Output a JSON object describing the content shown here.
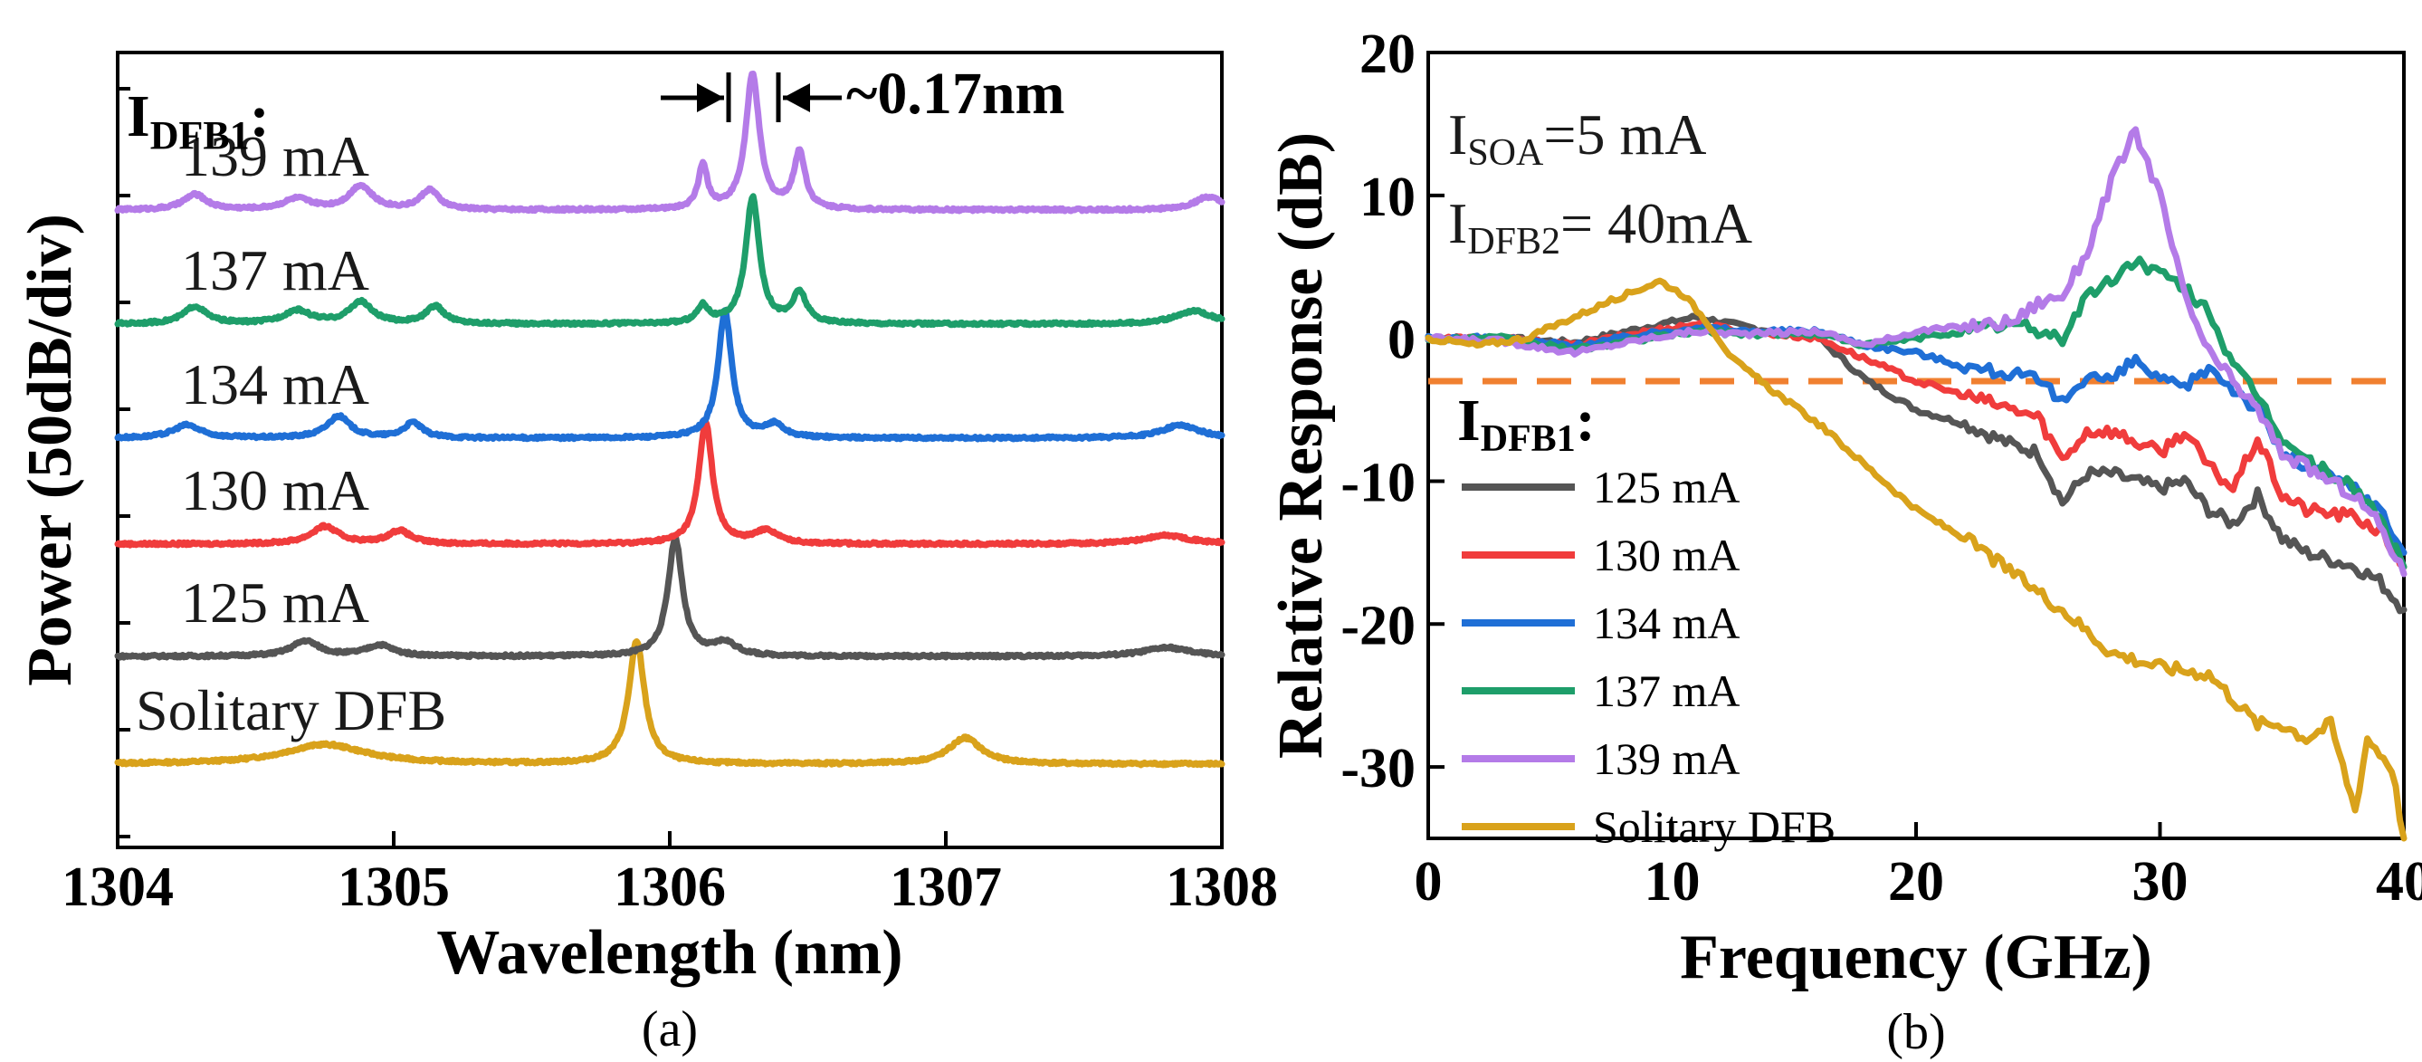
{
  "chart_data": [
    {
      "type": "line",
      "panel_label": "(a)",
      "xlabel": "Wavelength (nm)",
      "ylabel": "Power (50dB/div)",
      "xlim": [
        1304,
        1308
      ],
      "xticks": [
        "1304",
        "1305",
        "1306",
        "1307",
        "1308"
      ],
      "legend_title": {
        "main": "I",
        "sub": "DFB1",
        "suffix": ":"
      },
      "spacing_annotation": "~0.17nm",
      "series": [
        {
          "name": "Solitary DFB",
          "color": "#d9a21b",
          "offset": 0,
          "peaks": [
            [
              1304.75,
              0.45,
              0.18
            ],
            [
              1305.88,
              2.8,
              0.035
            ],
            [
              1307.07,
              0.6,
              0.07
            ]
          ]
        },
        {
          "name": "125 mA",
          "color": "#555555",
          "offset": 1,
          "peaks": [
            [
              1304.68,
              0.35,
              0.06
            ],
            [
              1304.95,
              0.25,
              0.06
            ],
            [
              1306.02,
              2.7,
              0.032
            ],
            [
              1306.2,
              0.3,
              0.05
            ],
            [
              1307.8,
              0.2,
              0.1
            ]
          ]
        },
        {
          "name": "130 mA",
          "color": "#f03c3c",
          "offset": 2,
          "peaks": [
            [
              1304.75,
              0.4,
              0.06
            ],
            [
              1305.02,
              0.3,
              0.05
            ],
            [
              1306.13,
              2.8,
              0.03
            ],
            [
              1306.35,
              0.3,
              0.05
            ],
            [
              1307.8,
              0.2,
              0.1
            ]
          ]
        },
        {
          "name": "134 mA",
          "color": "#1f6fd6",
          "offset": 3,
          "peaks": [
            [
              1304.25,
              0.3,
              0.06
            ],
            [
              1304.8,
              0.5,
              0.05
            ],
            [
              1305.07,
              0.35,
              0.04
            ],
            [
              1306.2,
              2.9,
              0.03
            ],
            [
              1306.38,
              0.3,
              0.04
            ],
            [
              1307.85,
              0.3,
              0.08
            ]
          ]
        },
        {
          "name": "137 mA",
          "color": "#1e9e6a",
          "offset": 4,
          "peaks": [
            [
              1304.28,
              0.4,
              0.05
            ],
            [
              1304.65,
              0.3,
              0.06
            ],
            [
              1304.88,
              0.5,
              0.05
            ],
            [
              1305.15,
              0.4,
              0.04
            ],
            [
              1306.12,
              0.4,
              0.025
            ],
            [
              1306.3,
              2.9,
              0.03
            ],
            [
              1306.47,
              0.7,
              0.03
            ],
            [
              1307.9,
              0.3,
              0.08
            ]
          ]
        },
        {
          "name": "139 mA",
          "color": "#b47be8",
          "offset": 5,
          "peaks": [
            [
              1304.28,
              0.35,
              0.05
            ],
            [
              1304.65,
              0.25,
              0.06
            ],
            [
              1304.88,
              0.55,
              0.05
            ],
            [
              1305.13,
              0.45,
              0.04
            ],
            [
              1306.12,
              1.0,
              0.02
            ],
            [
              1306.3,
              3.1,
              0.03
            ],
            [
              1306.47,
              1.3,
              0.025
            ],
            [
              1307.95,
              0.3,
              0.06
            ]
          ]
        }
      ]
    },
    {
      "type": "line",
      "panel_label": "(b)",
      "xlabel": "Frequency (GHz)",
      "ylabel": "Relative Response (dB)",
      "xlim": [
        0,
        40
      ],
      "ylim": [
        -35,
        20
      ],
      "xticks": [
        "0",
        "10",
        "20",
        "30",
        "40"
      ],
      "yticks": [
        "20",
        "10",
        "0",
        "-10",
        "-20",
        "-30"
      ],
      "reference_line_db": -3,
      "reference_color": "#f08030",
      "annotations": [
        {
          "main": "I",
          "sub": "SOA",
          "text": "=5 mA"
        },
        {
          "main": "I",
          "sub": "DFB2",
          "text": "= 40mA"
        }
      ],
      "legend_title": {
        "main": "I",
        "sub": "DFB1",
        "suffix": ":"
      },
      "series": [
        {
          "name": "125 mA",
          "color": "#555555",
          "points": [
            [
              0,
              0
            ],
            [
              3,
              0
            ],
            [
              6,
              -0.3
            ],
            [
              9,
              0.8
            ],
            [
              11,
              1.5
            ],
            [
              13,
              0.8
            ],
            [
              16,
              0
            ],
            [
              18,
              -3
            ],
            [
              20,
              -5
            ],
            [
              22,
              -6
            ],
            [
              24,
              -7.5
            ],
            [
              25,
              -8
            ],
            [
              26,
              -11.5
            ],
            [
              27,
              -9.5
            ],
            [
              28,
              -9.5
            ],
            [
              30,
              -10.5
            ],
            [
              31,
              -10
            ],
            [
              32,
              -12
            ],
            [
              33,
              -13
            ],
            [
              34,
              -11
            ],
            [
              35,
              -14
            ],
            [
              36,
              -15
            ],
            [
              38,
              -16
            ],
            [
              39,
              -17
            ],
            [
              40,
              -19
            ]
          ]
        },
        {
          "name": "130 mA",
          "color": "#f03c3c",
          "points": [
            [
              0,
              0
            ],
            [
              3,
              0
            ],
            [
              6,
              -0.5
            ],
            [
              9,
              0.5
            ],
            [
              11,
              1
            ],
            [
              13,
              0.5
            ],
            [
              16,
              0
            ],
            [
              18,
              -1.5
            ],
            [
              20,
              -3
            ],
            [
              22,
              -4
            ],
            [
              24,
              -5
            ],
            [
              25,
              -5.5
            ],
            [
              26,
              -8.5
            ],
            [
              27,
              -6.5
            ],
            [
              28,
              -6.5
            ],
            [
              30,
              -8
            ],
            [
              31,
              -6.5
            ],
            [
              32,
              -9
            ],
            [
              33,
              -10.5
            ],
            [
              34,
              -7
            ],
            [
              35,
              -11
            ],
            [
              36,
              -12
            ],
            [
              38,
              -12.5
            ],
            [
              39,
              -13.5
            ],
            [
              40,
              -16
            ]
          ]
        },
        {
          "name": "134 mA",
          "color": "#1f6fd6",
          "points": [
            [
              0,
              0
            ],
            [
              3,
              0
            ],
            [
              6,
              -0.5
            ],
            [
              9,
              0.3
            ],
            [
              11,
              0.8
            ],
            [
              13,
              0.5
            ],
            [
              16,
              0.5
            ],
            [
              18,
              -0.5
            ],
            [
              20,
              -1
            ],
            [
              22,
              -2
            ],
            [
              24,
              -2.5
            ],
            [
              25,
              -3
            ],
            [
              26,
              -4.5
            ],
            [
              27,
              -2.5
            ],
            [
              28,
              -3
            ],
            [
              29,
              -1.5
            ],
            [
              30,
              -3
            ],
            [
              31,
              -3.5
            ],
            [
              32,
              -2
            ],
            [
              33,
              -3.5
            ],
            [
              34,
              -5
            ],
            [
              35,
              -8
            ],
            [
              36,
              -9
            ],
            [
              38,
              -10.5
            ],
            [
              39,
              -12
            ],
            [
              40,
              -15
            ]
          ]
        },
        {
          "name": "137 mA",
          "color": "#1e9e6a",
          "points": [
            [
              0,
              0
            ],
            [
              3,
              0
            ],
            [
              6,
              -0.8
            ],
            [
              9,
              0
            ],
            [
              11,
              0.5
            ],
            [
              13,
              0.3
            ],
            [
              16,
              0.3
            ],
            [
              18,
              -0.5
            ],
            [
              20,
              0
            ],
            [
              22,
              0.5
            ],
            [
              24,
              1
            ],
            [
              25,
              0.5
            ],
            [
              26,
              0
            ],
            [
              27,
              3
            ],
            [
              28,
              4
            ],
            [
              29,
              5.5
            ],
            [
              30,
              4.5
            ],
            [
              31,
              3.5
            ],
            [
              32,
              2
            ],
            [
              33,
              -2
            ],
            [
              34,
              -4
            ],
            [
              35,
              -7
            ],
            [
              36,
              -8.5
            ],
            [
              38,
              -10.5
            ],
            [
              39,
              -12.5
            ],
            [
              40,
              -16
            ]
          ]
        },
        {
          "name": "139 mA",
          "color": "#b47be8",
          "points": [
            [
              0,
              0
            ],
            [
              3,
              -0.2
            ],
            [
              6,
              -1
            ],
            [
              9,
              0
            ],
            [
              11,
              0.5
            ],
            [
              13,
              0.3
            ],
            [
              16,
              0.5
            ],
            [
              18,
              -0.5
            ],
            [
              20,
              0.5
            ],
            [
              22,
              0.8
            ],
            [
              24,
              1.2
            ],
            [
              25,
              2.5
            ],
            [
              26,
              3
            ],
            [
              27,
              6
            ],
            [
              28,
              11
            ],
            [
              29,
              14.5
            ],
            [
              30,
              10
            ],
            [
              31,
              3
            ],
            [
              32,
              -1
            ],
            [
              33,
              -3
            ],
            [
              34,
              -5
            ],
            [
              35,
              -8
            ],
            [
              36,
              -9
            ],
            [
              38,
              -11
            ],
            [
              39,
              -13
            ],
            [
              40,
              -16.5
            ]
          ]
        },
        {
          "name": "Solitary DFB",
          "color": "#d9a21b",
          "points": [
            [
              0,
              0
            ],
            [
              2,
              -0.5
            ],
            [
              4,
              0
            ],
            [
              6,
              1.5
            ],
            [
              8,
              3
            ],
            [
              9.5,
              4
            ],
            [
              10.5,
              3
            ],
            [
              11.5,
              1
            ],
            [
              12.5,
              -1.5
            ],
            [
              14,
              -3.5
            ],
            [
              16,
              -6
            ],
            [
              18,
              -9
            ],
            [
              20,
              -12
            ],
            [
              22,
              -14
            ],
            [
              24,
              -16.5
            ],
            [
              26,
              -19
            ],
            [
              28,
              -22
            ],
            [
              30,
              -23
            ],
            [
              32,
              -23.5
            ],
            [
              34,
              -27
            ],
            [
              35,
              -27
            ],
            [
              36,
              -28
            ],
            [
              37,
              -27
            ],
            [
              37.5,
              -30
            ],
            [
              38,
              -33
            ],
            [
              38.5,
              -28
            ],
            [
              39,
              -29
            ],
            [
              39.5,
              -30
            ],
            [
              40,
              -35
            ]
          ]
        }
      ]
    }
  ]
}
